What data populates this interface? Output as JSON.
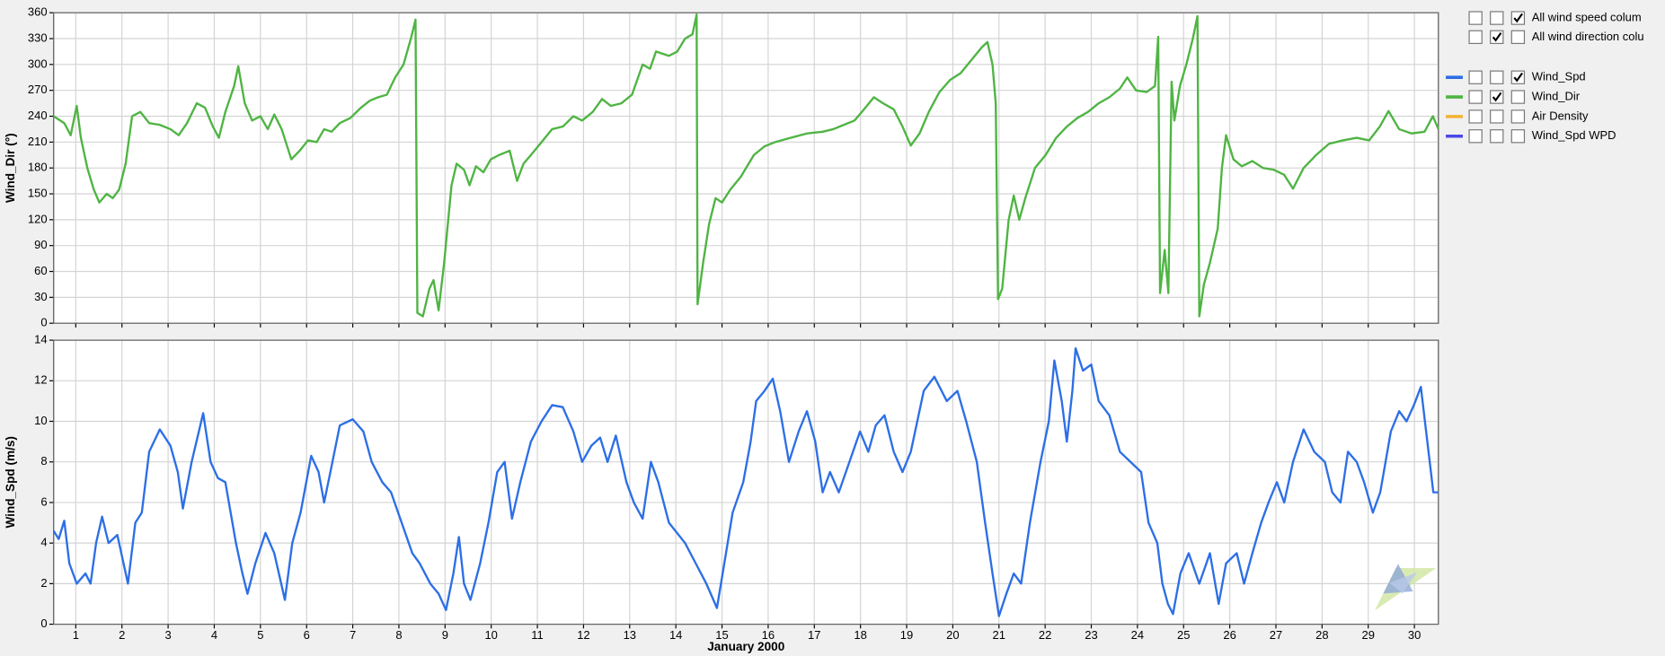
{
  "chart_data": [
    {
      "type": "line",
      "ylabel": "Wind_Dir (°)",
      "color": "#4fb443",
      "grid": true,
      "xtick_labels": false,
      "xlim": [
        0.52,
        30.52
      ],
      "ylim": [
        0,
        360
      ],
      "yticks": [
        0,
        30,
        60,
        90,
        120,
        150,
        180,
        210,
        240,
        270,
        300,
        330,
        360
      ],
      "xticks": [
        1,
        2,
        3,
        4,
        5,
        6,
        7,
        8,
        9,
        10,
        11,
        12,
        13,
        14,
        15,
        16,
        17,
        18,
        19,
        20,
        21,
        22,
        23,
        24,
        25,
        26,
        27,
        28,
        29,
        30
      ],
      "x": [
        0.52,
        0.75,
        0.89,
        1.02,
        1.11,
        1.25,
        1.39,
        1.51,
        1.67,
        1.8,
        1.94,
        2.08,
        2.22,
        2.4,
        2.59,
        2.82,
        3.05,
        3.23,
        3.41,
        3.62,
        3.8,
        3.97,
        4.1,
        4.24,
        4.43,
        4.52,
        4.66,
        4.82,
        5.0,
        5.16,
        5.3,
        5.46,
        5.67,
        5.85,
        6.03,
        6.22,
        6.38,
        6.54,
        6.72,
        6.95,
        7.18,
        7.37,
        7.55,
        7.74,
        7.92,
        8.1,
        8.26,
        8.36,
        8.4,
        8.52,
        8.66,
        8.75,
        8.86,
        8.98,
        9.14,
        9.25,
        9.41,
        9.53,
        9.67,
        9.83,
        9.99,
        10.17,
        10.4,
        10.56,
        10.7,
        10.86,
        11.09,
        11.32,
        11.55,
        11.78,
        11.97,
        12.2,
        12.4,
        12.59,
        12.82,
        13.05,
        13.28,
        13.44,
        13.57,
        13.85,
        14.03,
        14.2,
        14.36,
        14.45,
        14.47,
        14.59,
        14.72,
        14.86,
        15.0,
        15.18,
        15.41,
        15.69,
        15.92,
        16.15,
        16.49,
        16.84,
        17.18,
        17.41,
        17.64,
        17.87,
        18.03,
        18.29,
        18.49,
        18.72,
        18.91,
        19.09,
        19.28,
        19.48,
        19.71,
        19.94,
        20.17,
        20.4,
        20.63,
        20.75,
        20.86,
        20.93,
        20.98,
        21.07,
        21.21,
        21.32,
        21.44,
        21.57,
        21.78,
        22.01,
        22.24,
        22.47,
        22.7,
        22.93,
        23.16,
        23.39,
        23.62,
        23.78,
        23.97,
        24.2,
        24.38,
        24.45,
        24.49,
        24.59,
        24.67,
        24.74,
        24.8,
        24.92,
        25.06,
        25.2,
        25.3,
        25.34,
        25.44,
        25.57,
        25.74,
        25.83,
        25.92,
        26.08,
        26.26,
        26.49,
        26.72,
        26.95,
        27.18,
        27.37,
        27.6,
        27.87,
        28.15,
        28.45,
        28.75,
        29.02,
        29.25,
        29.44,
        29.67,
        29.94,
        30.22,
        30.4,
        30.52
      ],
      "values": [
        240,
        232,
        218,
        252,
        215,
        180,
        155,
        140,
        150,
        145,
        155,
        185,
        240,
        245,
        232,
        230,
        225,
        218,
        232,
        255,
        250,
        228,
        215,
        245,
        275,
        298,
        255,
        235,
        240,
        225,
        242,
        225,
        190,
        200,
        212,
        210,
        225,
        222,
        232,
        238,
        250,
        258,
        262,
        265,
        285,
        300,
        330,
        352,
        12,
        8,
        40,
        50,
        15,
        70,
        160,
        185,
        178,
        160,
        182,
        175,
        190,
        195,
        200,
        165,
        185,
        195,
        210,
        225,
        228,
        240,
        235,
        245,
        260,
        252,
        255,
        265,
        300,
        295,
        315,
        310,
        315,
        330,
        335,
        358,
        22,
        70,
        115,
        145,
        140,
        155,
        170,
        195,
        205,
        210,
        215,
        220,
        222,
        225,
        230,
        235,
        245,
        262,
        255,
        248,
        228,
        206,
        220,
        245,
        268,
        282,
        290,
        305,
        320,
        326,
        300,
        255,
        28,
        40,
        120,
        148,
        120,
        145,
        180,
        195,
        215,
        228,
        238,
        245,
        255,
        262,
        272,
        285,
        270,
        268,
        275,
        332,
        35,
        85,
        35,
        280,
        235,
        275,
        300,
        330,
        356,
        8,
        45,
        70,
        110,
        180,
        218,
        190,
        182,
        188,
        180,
        178,
        172,
        156,
        180,
        195,
        208,
        212,
        215,
        212,
        228,
        246,
        225,
        220,
        222,
        240,
        225
      ]
    },
    {
      "type": "line",
      "ylabel": "Wind_Spd (m/s)",
      "xlabel": "January 2000",
      "color": "#2d6fe6",
      "grid": true,
      "xtick_labels": true,
      "xlim": [
        0.52,
        30.52
      ],
      "ylim": [
        0,
        14
      ],
      "yticks": [
        0,
        2,
        4,
        6,
        8,
        10,
        12,
        14
      ],
      "xticks": [
        1,
        2,
        3,
        4,
        5,
        6,
        7,
        8,
        9,
        10,
        11,
        12,
        13,
        14,
        15,
        16,
        17,
        18,
        19,
        20,
        21,
        22,
        23,
        24,
        25,
        26,
        27,
        28,
        29,
        30
      ],
      "x": [
        0.52,
        0.63,
        0.75,
        0.86,
        1.02,
        1.21,
        1.32,
        1.44,
        1.57,
        1.71,
        1.9,
        2.13,
        2.29,
        2.43,
        2.59,
        2.82,
        3.05,
        3.21,
        3.32,
        3.51,
        3.76,
        3.92,
        4.08,
        4.24,
        4.47,
        4.61,
        4.72,
        4.89,
        5.11,
        5.3,
        5.53,
        5.69,
        5.87,
        6.1,
        6.26,
        6.38,
        6.56,
        6.72,
        7.0,
        7.23,
        7.41,
        7.64,
        7.83,
        8.06,
        8.29,
        8.45,
        8.68,
        8.86,
        9.02,
        9.18,
        9.3,
        9.41,
        9.55,
        9.76,
        9.94,
        10.13,
        10.29,
        10.45,
        10.63,
        10.86,
        11.09,
        11.32,
        11.55,
        11.78,
        11.97,
        12.17,
        12.36,
        12.52,
        12.7,
        12.93,
        13.09,
        13.28,
        13.46,
        13.62,
        13.85,
        14.2,
        14.43,
        14.66,
        14.89,
        15.05,
        15.23,
        15.46,
        15.62,
        15.74,
        15.92,
        16.1,
        16.26,
        16.45,
        16.66,
        16.84,
        17.02,
        17.18,
        17.34,
        17.53,
        17.76,
        17.99,
        18.17,
        18.33,
        18.52,
        18.72,
        18.91,
        19.09,
        19.37,
        19.6,
        19.87,
        20.1,
        20.29,
        20.52,
        20.7,
        20.86,
        21.0,
        21.16,
        21.32,
        21.48,
        21.67,
        21.9,
        22.08,
        22.2,
        22.36,
        22.47,
        22.59,
        22.66,
        22.82,
        23.0,
        23.16,
        23.39,
        23.62,
        23.85,
        24.08,
        24.24,
        24.43,
        24.54,
        24.66,
        24.77,
        24.93,
        25.11,
        25.34,
        25.57,
        25.76,
        25.92,
        26.15,
        26.31,
        26.49,
        26.68,
        26.84,
        27.02,
        27.18,
        27.37,
        27.6,
        27.83,
        28.06,
        28.22,
        28.4,
        28.56,
        28.75,
        28.91,
        29.1,
        29.26,
        29.49,
        29.67,
        29.83,
        29.99,
        30.14,
        30.28,
        30.41,
        30.52
      ],
      "values": [
        4.6,
        4.2,
        5.1,
        3.0,
        2.0,
        2.5,
        2.0,
        4.0,
        5.3,
        4.0,
        4.4,
        2.0,
        5.0,
        5.5,
        8.5,
        9.6,
        8.8,
        7.5,
        5.7,
        8.0,
        10.4,
        8.0,
        7.2,
        7.0,
        4.0,
        2.5,
        1.5,
        3.0,
        4.5,
        3.5,
        1.2,
        4.0,
        5.5,
        8.3,
        7.5,
        6.0,
        8.0,
        9.8,
        10.1,
        9.5,
        8.0,
        7.0,
        6.5,
        5.0,
        3.5,
        3.0,
        2.0,
        1.5,
        0.7,
        2.5,
        4.3,
        2.0,
        1.2,
        3.0,
        5.0,
        7.5,
        8.0,
        5.2,
        7.0,
        9.0,
        10.0,
        10.8,
        10.7,
        9.5,
        8.0,
        8.8,
        9.2,
        8.0,
        9.3,
        7.0,
        6.0,
        5.2,
        8.0,
        7.0,
        5.0,
        4.0,
        3.0,
        2.0,
        0.8,
        3.0,
        5.5,
        7.0,
        9.0,
        11.0,
        11.5,
        12.1,
        10.5,
        8.0,
        9.5,
        10.5,
        9.0,
        6.5,
        7.5,
        6.5,
        8.0,
        9.5,
        8.5,
        9.8,
        10.3,
        8.5,
        7.5,
        8.5,
        11.5,
        12.2,
        11.0,
        11.5,
        10.0,
        8.0,
        5.0,
        2.5,
        0.4,
        1.5,
        2.5,
        2.0,
        5.0,
        8.0,
        10.0,
        13.0,
        11.0,
        9.0,
        11.5,
        13.6,
        12.5,
        12.8,
        11.0,
        10.3,
        8.5,
        8.0,
        7.5,
        5.0,
        4.0,
        2.0,
        1.0,
        0.5,
        2.5,
        3.5,
        2.0,
        3.5,
        1.0,
        3.0,
        3.5,
        2.0,
        3.5,
        5.0,
        6.0,
        7.0,
        6.0,
        8.0,
        9.6,
        8.5,
        8.0,
        6.5,
        6.0,
        8.5,
        8.0,
        7.0,
        5.5,
        6.5,
        9.5,
        10.5,
        10.0,
        10.8,
        11.7,
        9.0,
        6.5,
        6.5
      ]
    }
  ],
  "panel": {
    "options": [
      {
        "label": "All wind speed colum",
        "checks": [
          false,
          false,
          true
        ]
      },
      {
        "label": "All wind direction colu",
        "checks": [
          false,
          true,
          false
        ]
      }
    ],
    "series": [
      {
        "name": "Wind_Spd",
        "color": "#2d6fe6",
        "checks": [
          false,
          false,
          true
        ]
      },
      {
        "name": "Wind_Dir",
        "color": "#4fb443",
        "checks": [
          false,
          true,
          false
        ]
      },
      {
        "name": "Air Density",
        "color": "#f2b233",
        "checks": [
          false,
          false,
          false
        ]
      },
      {
        "name": "Wind_Spd WPD",
        "color": "#4848e8",
        "checks": [
          false,
          false,
          false
        ]
      }
    ]
  }
}
